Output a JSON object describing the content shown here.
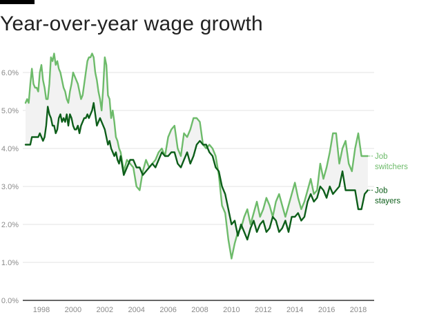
{
  "header": {
    "title": "Year-over-year wage growth"
  },
  "chart_data": {
    "type": "line",
    "title": "Year-over-year wage growth",
    "xlabel": "",
    "ylabel": "",
    "xlim": [
      1996.7,
      2018.9
    ],
    "ylim": [
      0,
      6.5
    ],
    "grid": true,
    "yticks": [
      0,
      1,
      2,
      3,
      4,
      5,
      6
    ],
    "ytick_labels": [
      "0.0%",
      "1.0%",
      "2.0%",
      "3.0%",
      "4.0%",
      "5.0%",
      "6.0%"
    ],
    "xticks": [
      1998,
      2000,
      2002,
      2004,
      2006,
      2008,
      2010,
      2012,
      2014,
      2016,
      2018
    ],
    "xtick_labels": [
      "1998",
      "2000",
      "2002",
      "2004",
      "2006",
      "2008",
      "2010",
      "2012",
      "2014",
      "2016",
      "2018"
    ],
    "legend_placement": "right (direct labels at line ends)",
    "shaded_band_between_series": true,
    "colors": {
      "switchers": "#6dbb6a",
      "stayers": "#0d5e1a",
      "band": "#f2f2f2",
      "grid": "#e3e3e3",
      "axis": "#333333"
    },
    "series": [
      {
        "name": "Job switchers",
        "label_lines": [
          "Job",
          "switchers"
        ],
        "x": [
          1997.0,
          1997.1,
          1997.2,
          1997.3,
          1997.4,
          1997.5,
          1997.6,
          1997.7,
          1997.8,
          1997.9,
          1998.0,
          1998.1,
          1998.2,
          1998.3,
          1998.4,
          1998.5,
          1998.6,
          1998.7,
          1998.8,
          1998.9,
          1999.0,
          1999.1,
          1999.2,
          1999.3,
          1999.4,
          1999.5,
          1999.6,
          1999.7,
          1999.8,
          1999.9,
          2000.0,
          2000.1,
          2000.2,
          2000.3,
          2000.4,
          2000.5,
          2000.6,
          2000.7,
          2000.8,
          2000.9,
          2001.0,
          2001.1,
          2001.2,
          2001.3,
          2001.4,
          2001.5,
          2001.6,
          2001.7,
          2001.8,
          2001.9,
          2002.0,
          2002.1,
          2002.2,
          2002.3,
          2002.4,
          2002.5,
          2002.6,
          2002.7,
          2002.8,
          2002.9,
          2003.0,
          2003.2,
          2003.4,
          2003.6,
          2003.8,
          2004.0,
          2004.2,
          2004.4,
          2004.6,
          2004.8,
          2005.0,
          2005.2,
          2005.4,
          2005.6,
          2005.8,
          2006.0,
          2006.2,
          2006.4,
          2006.6,
          2006.8,
          2007.0,
          2007.2,
          2007.4,
          2007.6,
          2007.8,
          2008.0,
          2008.2,
          2008.4,
          2008.6,
          2008.8,
          2009.0,
          2009.2,
          2009.4,
          2009.6,
          2009.8,
          2010.0,
          2010.2,
          2010.4,
          2010.6,
          2010.8,
          2011.0,
          2011.2,
          2011.4,
          2011.6,
          2011.8,
          2012.0,
          2012.2,
          2012.4,
          2012.6,
          2012.8,
          2013.0,
          2013.2,
          2013.4,
          2013.6,
          2013.8,
          2014.0,
          2014.2,
          2014.4,
          2014.6,
          2014.8,
          2015.0,
          2015.2,
          2015.4,
          2015.6,
          2015.8,
          2016.0,
          2016.2,
          2016.4,
          2016.6,
          2016.8,
          2017.0,
          2017.2,
          2017.4,
          2017.6,
          2017.8,
          2018.0,
          2018.2,
          2018.4,
          2018.6
        ],
        "values": [
          5.2,
          5.3,
          5.2,
          5.7,
          6.1,
          5.7,
          5.6,
          5.6,
          5.5,
          6.0,
          6.2,
          5.8,
          5.6,
          5.3,
          5.3,
          5.7,
          6.4,
          6.3,
          6.5,
          6.2,
          6.3,
          6.1,
          6.0,
          5.8,
          5.6,
          5.5,
          5.3,
          5.2,
          5.5,
          5.7,
          6.0,
          5.9,
          5.8,
          5.7,
          5.5,
          5.3,
          5.4,
          5.7,
          6.0,
          6.3,
          6.4,
          6.4,
          6.5,
          6.4,
          6.0,
          5.8,
          5.5,
          5.3,
          5.0,
          5.6,
          6.4,
          6.2,
          5.4,
          5.3,
          4.8,
          5.0,
          4.7,
          4.3,
          4.2,
          4.0,
          3.9,
          3.4,
          3.7,
          3.6,
          3.5,
          3.0,
          2.9,
          3.4,
          3.7,
          3.5,
          3.6,
          3.7,
          3.9,
          4.0,
          3.8,
          4.3,
          4.5,
          4.6,
          4.0,
          3.8,
          4.4,
          4.3,
          4.5,
          4.8,
          4.8,
          4.7,
          4.1,
          4.0,
          4.1,
          4.0,
          3.8,
          3.3,
          2.5,
          2.3,
          1.6,
          1.1,
          1.5,
          1.8,
          1.9,
          2.2,
          2.4,
          2.0,
          2.3,
          2.6,
          2.2,
          2.4,
          2.7,
          2.5,
          2.2,
          2.6,
          2.8,
          2.5,
          2.2,
          2.5,
          2.8,
          3.1,
          2.7,
          2.4,
          2.6,
          2.9,
          3.2,
          2.8,
          2.9,
          3.6,
          3.2,
          3.5,
          3.9,
          4.4,
          4.4,
          3.6,
          4.0,
          4.2,
          3.6,
          3.4,
          4.0,
          4.4,
          3.8,
          3.8,
          3.8
        ]
      },
      {
        "name": "Job stayers",
        "label_lines": [
          "Job",
          "stayers"
        ],
        "x": [
          1997.0,
          1997.1,
          1997.2,
          1997.3,
          1997.4,
          1997.5,
          1997.6,
          1997.7,
          1997.8,
          1997.9,
          1998.0,
          1998.1,
          1998.2,
          1998.3,
          1998.4,
          1998.5,
          1998.6,
          1998.7,
          1998.8,
          1998.9,
          1999.0,
          1999.1,
          1999.2,
          1999.3,
          1999.4,
          1999.5,
          1999.6,
          1999.7,
          1999.8,
          1999.9,
          2000.0,
          2000.1,
          2000.2,
          2000.3,
          2000.4,
          2000.5,
          2000.6,
          2000.7,
          2000.8,
          2000.9,
          2001.0,
          2001.1,
          2001.2,
          2001.3,
          2001.4,
          2001.5,
          2001.6,
          2001.7,
          2001.8,
          2001.9,
          2002.0,
          2002.1,
          2002.2,
          2002.3,
          2002.4,
          2002.5,
          2002.6,
          2002.7,
          2002.8,
          2002.9,
          2003.0,
          2003.2,
          2003.4,
          2003.6,
          2003.8,
          2004.0,
          2004.2,
          2004.4,
          2004.6,
          2004.8,
          2005.0,
          2005.2,
          2005.4,
          2005.6,
          2005.8,
          2006.0,
          2006.2,
          2006.4,
          2006.6,
          2006.8,
          2007.0,
          2007.2,
          2007.4,
          2007.6,
          2007.8,
          2008.0,
          2008.2,
          2008.4,
          2008.6,
          2008.8,
          2009.0,
          2009.2,
          2009.4,
          2009.6,
          2009.8,
          2010.0,
          2010.2,
          2010.4,
          2010.6,
          2010.8,
          2011.0,
          2011.2,
          2011.4,
          2011.6,
          2011.8,
          2012.0,
          2012.2,
          2012.4,
          2012.6,
          2012.8,
          2013.0,
          2013.2,
          2013.4,
          2013.6,
          2013.8,
          2014.0,
          2014.2,
          2014.4,
          2014.6,
          2014.8,
          2015.0,
          2015.2,
          2015.4,
          2015.6,
          2015.8,
          2016.0,
          2016.2,
          2016.4,
          2016.6,
          2016.8,
          2017.0,
          2017.2,
          2017.4,
          2017.6,
          2017.8,
          2018.0,
          2018.2,
          2018.4,
          2018.6
        ],
        "values": [
          4.1,
          4.1,
          4.1,
          4.1,
          4.3,
          4.3,
          4.3,
          4.3,
          4.3,
          4.4,
          4.3,
          4.2,
          4.3,
          4.6,
          5.1,
          4.9,
          4.8,
          4.6,
          4.6,
          4.4,
          4.5,
          4.8,
          4.9,
          4.7,
          4.8,
          4.7,
          4.9,
          4.6,
          4.9,
          4.8,
          4.6,
          4.5,
          4.5,
          4.6,
          4.4,
          4.6,
          4.7,
          4.8,
          4.8,
          4.9,
          4.8,
          4.9,
          5.0,
          5.2,
          4.9,
          4.6,
          4.7,
          4.8,
          4.7,
          4.6,
          4.5,
          4.3,
          4.1,
          4.2,
          4.0,
          3.9,
          3.8,
          3.9,
          3.7,
          3.6,
          3.8,
          3.3,
          3.5,
          3.7,
          3.7,
          3.5,
          3.5,
          3.3,
          3.4,
          3.5,
          3.6,
          3.5,
          3.7,
          3.9,
          3.8,
          3.8,
          3.9,
          3.9,
          3.6,
          3.5,
          3.7,
          3.9,
          3.6,
          3.8,
          4.1,
          4.2,
          4.1,
          4.1,
          3.9,
          3.8,
          3.5,
          3.4,
          3.0,
          2.8,
          2.4,
          2.0,
          2.1,
          1.7,
          2.0,
          1.8,
          1.6,
          1.9,
          2.1,
          1.8,
          2.0,
          2.1,
          1.8,
          1.9,
          2.2,
          2.1,
          1.8,
          1.9,
          2.1,
          1.8,
          2.2,
          2.2,
          2.3,
          2.1,
          2.2,
          2.6,
          2.8,
          2.6,
          2.7,
          3.0,
          2.9,
          2.7,
          3.0,
          2.8,
          2.9,
          3.0,
          3.4,
          2.9,
          2.9,
          2.9,
          2.9,
          2.4,
          2.4,
          2.8,
          2.9
        ]
      }
    ]
  }
}
